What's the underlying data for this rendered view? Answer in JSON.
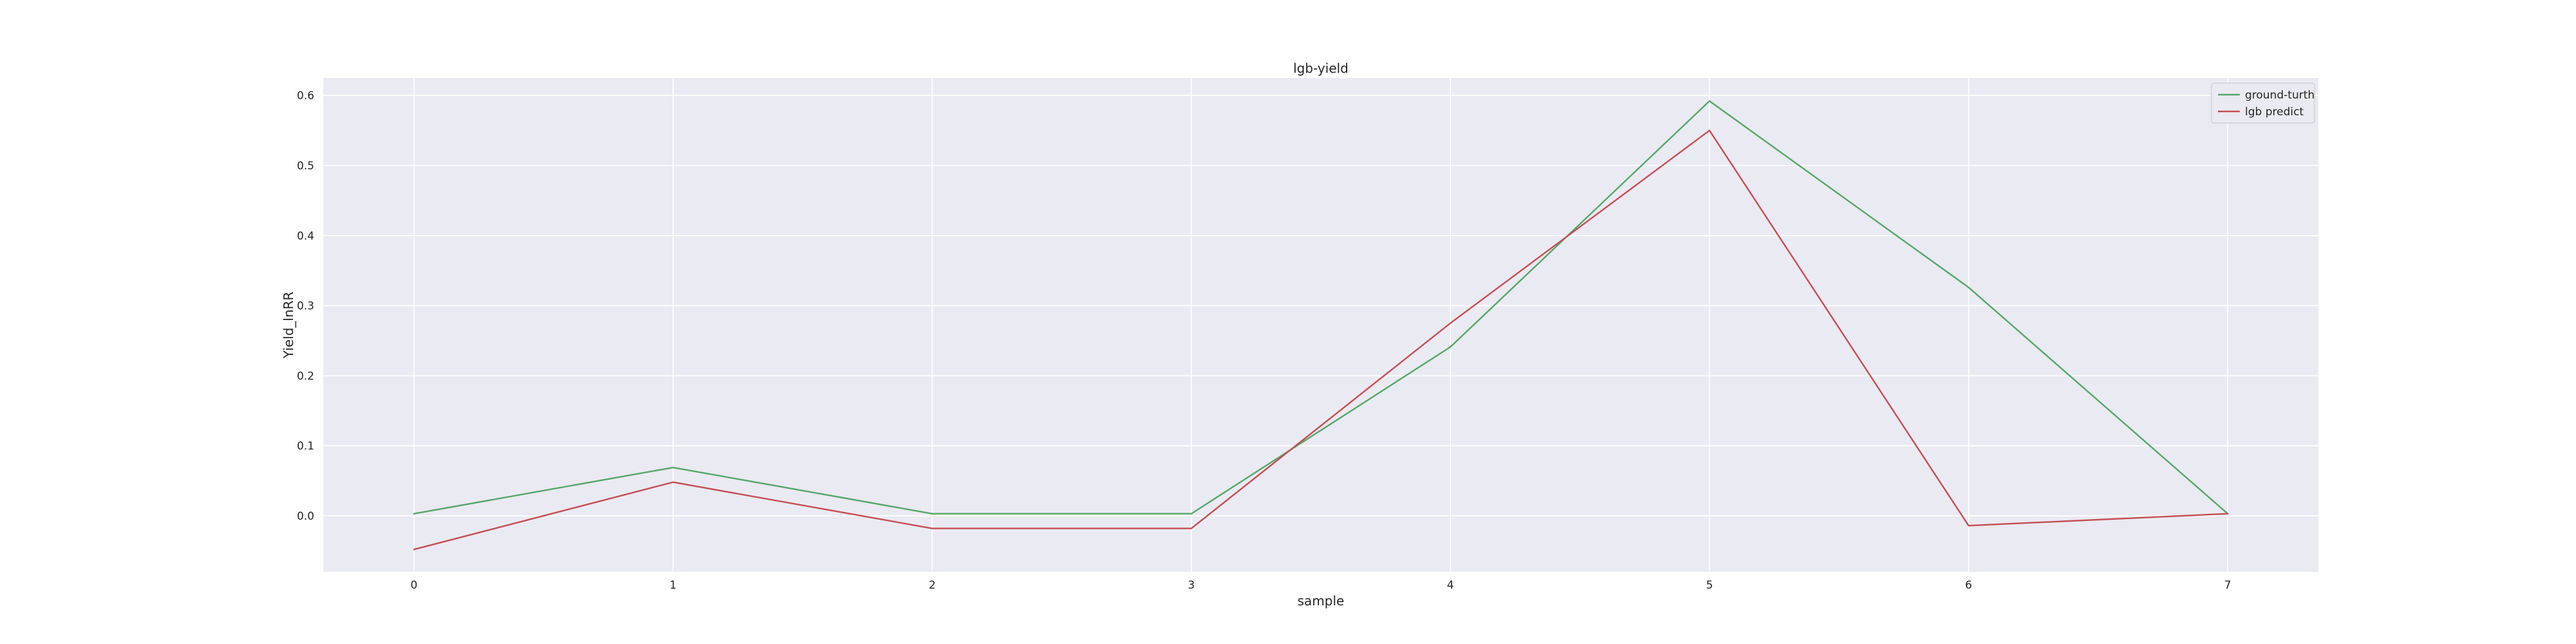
{
  "chart_data": {
    "type": "line",
    "title": "lgb-yield",
    "xlabel": "sample",
    "ylabel": "Yield_lnRR",
    "x": [
      0,
      1,
      2,
      3,
      4,
      5,
      6,
      7
    ],
    "xticks": [
      "0",
      "1",
      "2",
      "3",
      "4",
      "5",
      "6",
      "7"
    ],
    "xlim": [
      -0.35,
      7.35
    ],
    "yticks": [
      "0.0",
      "0.1",
      "0.2",
      "0.3",
      "0.4",
      "0.5",
      "0.6"
    ],
    "ylim": [
      -0.08,
      0.625
    ],
    "grid": true,
    "legend_position": "top-right",
    "background": "#eaeaf2",
    "series": [
      {
        "name": "ground-turth",
        "color": "#55a868",
        "values": [
          0.003,
          0.069,
          0.003,
          0.003,
          0.241,
          0.592,
          0.326,
          0.003
        ]
      },
      {
        "name": "lgb predict",
        "color": "#c44e52",
        "values": [
          -0.048,
          0.048,
          -0.018,
          -0.018,
          0.275,
          0.55,
          -0.014,
          0.003
        ]
      }
    ]
  }
}
